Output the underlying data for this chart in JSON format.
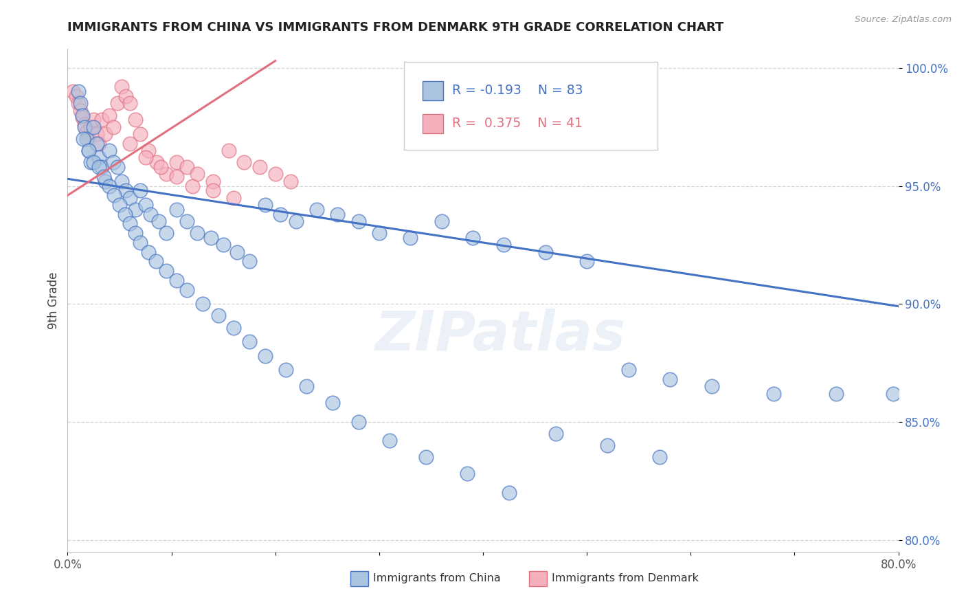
{
  "title": "IMMIGRANTS FROM CHINA VS IMMIGRANTS FROM DENMARK 9TH GRADE CORRELATION CHART",
  "source": "Source: ZipAtlas.com",
  "ylabel": "9th Grade",
  "legend_entry1": "Immigrants from China",
  "legend_entry2": "Immigrants from Denmark",
  "R1": -0.193,
  "N1": 83,
  "R2": 0.375,
  "N2": 41,
  "xlim": [
    0.0,
    0.8
  ],
  "ylim": [
    0.795,
    1.008
  ],
  "xticks": [
    0.0,
    0.1,
    0.2,
    0.3,
    0.4,
    0.5,
    0.6,
    0.7,
    0.8
  ],
  "yticks": [
    0.8,
    0.85,
    0.9,
    0.95,
    1.0
  ],
  "yticklabels": [
    "80.0%",
    "85.0%",
    "90.0%",
    "95.0%",
    "100.0%"
  ],
  "color_china": "#aac4df",
  "color_denmark": "#f5b0be",
  "trendline_china": "#4472c4",
  "trendline_denmark": "#e07080",
  "watermark": "ZIPatlas",
  "background_color": "#ffffff",
  "china_trendline_x0": 0.0,
  "china_trendline_y0": 0.953,
  "china_trendline_x1": 0.8,
  "china_trendline_y1": 0.899,
  "denmark_trendline_x0": 0.0,
  "denmark_trendline_y0": 0.946,
  "denmark_trendline_x1": 0.2,
  "denmark_trendline_y1": 1.003,
  "china_scatter_x": [
    0.01,
    0.012,
    0.014,
    0.016,
    0.018,
    0.02,
    0.022,
    0.025,
    0.028,
    0.03,
    0.033,
    0.036,
    0.04,
    0.044,
    0.048,
    0.052,
    0.056,
    0.06,
    0.065,
    0.07,
    0.075,
    0.08,
    0.088,
    0.095,
    0.105,
    0.115,
    0.125,
    0.138,
    0.15,
    0.163,
    0.175,
    0.19,
    0.205,
    0.22,
    0.24,
    0.26,
    0.28,
    0.3,
    0.33,
    0.36,
    0.39,
    0.42,
    0.46,
    0.5,
    0.54,
    0.58,
    0.62,
    0.68,
    0.74,
    0.795,
    0.015,
    0.02,
    0.025,
    0.03,
    0.035,
    0.04,
    0.045,
    0.05,
    0.055,
    0.06,
    0.065,
    0.07,
    0.078,
    0.085,
    0.095,
    0.105,
    0.115,
    0.13,
    0.145,
    0.16,
    0.175,
    0.19,
    0.21,
    0.23,
    0.255,
    0.28,
    0.31,
    0.345,
    0.385,
    0.425,
    0.47,
    0.52,
    0.57
  ],
  "china_scatter_y": [
    0.99,
    0.985,
    0.98,
    0.975,
    0.97,
    0.965,
    0.96,
    0.975,
    0.968,
    0.962,
    0.958,
    0.952,
    0.965,
    0.96,
    0.958,
    0.952,
    0.948,
    0.945,
    0.94,
    0.948,
    0.942,
    0.938,
    0.935,
    0.93,
    0.94,
    0.935,
    0.93,
    0.928,
    0.925,
    0.922,
    0.918,
    0.942,
    0.938,
    0.935,
    0.94,
    0.938,
    0.935,
    0.93,
    0.928,
    0.935,
    0.928,
    0.925,
    0.922,
    0.918,
    0.872,
    0.868,
    0.865,
    0.862,
    0.862,
    0.862,
    0.97,
    0.965,
    0.96,
    0.958,
    0.954,
    0.95,
    0.946,
    0.942,
    0.938,
    0.934,
    0.93,
    0.926,
    0.922,
    0.918,
    0.914,
    0.91,
    0.906,
    0.9,
    0.895,
    0.89,
    0.884,
    0.878,
    0.872,
    0.865,
    0.858,
    0.85,
    0.842,
    0.835,
    0.828,
    0.82,
    0.845,
    0.84,
    0.835
  ],
  "denmark_scatter_x": [
    0.005,
    0.008,
    0.01,
    0.012,
    0.014,
    0.016,
    0.018,
    0.02,
    0.022,
    0.025,
    0.028,
    0.03,
    0.033,
    0.036,
    0.04,
    0.044,
    0.048,
    0.052,
    0.056,
    0.06,
    0.065,
    0.07,
    0.078,
    0.086,
    0.095,
    0.105,
    0.115,
    0.125,
    0.14,
    0.155,
    0.17,
    0.185,
    0.2,
    0.215,
    0.06,
    0.075,
    0.09,
    0.105,
    0.12,
    0.14,
    0.16
  ],
  "denmark_scatter_y": [
    0.99,
    0.988,
    0.985,
    0.982,
    0.979,
    0.976,
    0.973,
    0.97,
    0.975,
    0.978,
    0.972,
    0.968,
    0.978,
    0.972,
    0.98,
    0.975,
    0.985,
    0.992,
    0.988,
    0.985,
    0.978,
    0.972,
    0.965,
    0.96,
    0.955,
    0.96,
    0.958,
    0.955,
    0.952,
    0.965,
    0.96,
    0.958,
    0.955,
    0.952,
    0.968,
    0.962,
    0.958,
    0.954,
    0.95,
    0.948,
    0.945
  ]
}
